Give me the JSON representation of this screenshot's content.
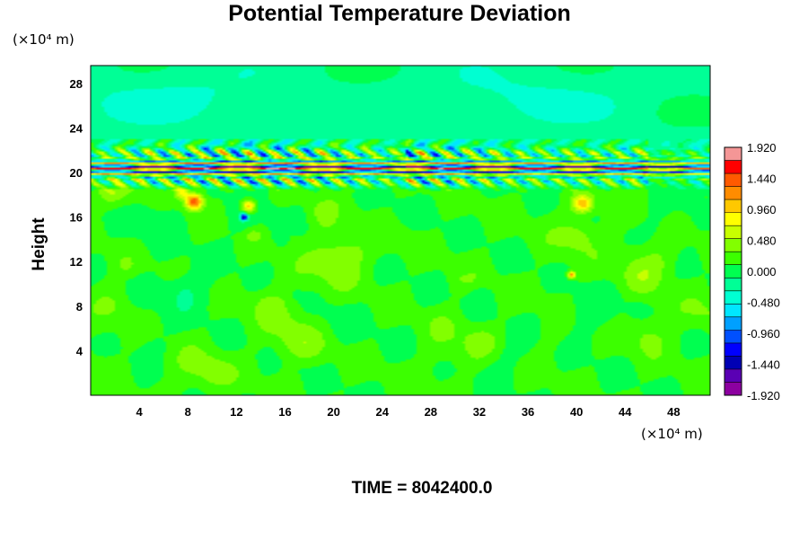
{
  "chart_data": {
    "type": "heatmap",
    "title": "Potential Temperature Deviation",
    "ylabel": "Height",
    "xunit_label": "(×10⁴ m)",
    "yunit_label": "(×10⁴ m)",
    "footer": "TIME = 8042400.0",
    "xlim": [
      0,
      51
    ],
    "ylim": [
      0,
      29.6
    ],
    "xticks": [
      4,
      8,
      12,
      16,
      20,
      24,
      28,
      32,
      36,
      40,
      44,
      48
    ],
    "xtick_labels": [
      "4",
      "8",
      "12",
      "16",
      "20",
      "24",
      "28",
      "32",
      "36",
      "40",
      "44",
      "48"
    ],
    "yticks": [
      4,
      8,
      12,
      16,
      20,
      24,
      28
    ],
    "ytick_labels": [
      "4",
      "8",
      "12",
      "16",
      "20",
      "24",
      "28"
    ],
    "colorbar": {
      "range": [
        -1.92,
        1.92
      ],
      "tick_values": [
        1.92,
        1.44,
        0.96,
        0.48,
        0.0,
        -0.48,
        -0.96,
        -1.44,
        -1.92
      ],
      "tick_labels": [
        "1.920",
        "1.440",
        "0.960",
        "0.480",
        "0.000",
        "-0.480",
        "-0.960",
        "-1.440",
        "-1.920"
      ],
      "colors": [
        "#f49696",
        "#ff0000",
        "#ff5a00",
        "#ff8c00",
        "#ffc800",
        "#ffff00",
        "#c8ff00",
        "#82ff00",
        "#3cff00",
        "#00ff50",
        "#00ff96",
        "#00ffd2",
        "#00e6ff",
        "#00a0ff",
        "#0050ff",
        "#0000ff",
        "#0000b4",
        "#5a00b4",
        "#8c00a0"
      ]
    },
    "features": [
      {
        "label": "strong banded layer",
        "y_range": [
          19.5,
          21.0
        ],
        "x_range": [
          0,
          51
        ],
        "values": "alternating -1.92 / +1.92"
      },
      {
        "label": "wave-disturbed region",
        "y_range": [
          18.0,
          23.0
        ],
        "x_range": [
          0,
          51
        ],
        "values": "-1.0 to +1.5"
      },
      {
        "label": "upper layer",
        "y_range": [
          22,
          29.6
        ],
        "values": "about -0.3 to 0.0"
      },
      {
        "label": "lower troposphere",
        "y_range": [
          0,
          18
        ],
        "values": "about 0.0 to +0.3"
      }
    ]
  }
}
